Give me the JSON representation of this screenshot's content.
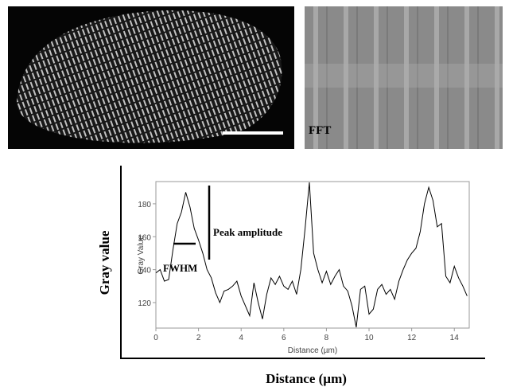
{
  "figure": {
    "fft_label": "FFT",
    "y_label": "Gray value",
    "x_label": "Distance (µm)"
  },
  "chart_data": {
    "type": "line",
    "x_label": "Distance (µm)",
    "y_label": "Gray Value",
    "annotations": [
      "Peak amplitude",
      "FWHM"
    ],
    "color": "#000000",
    "x": [
      0,
      0.2,
      0.4,
      0.6,
      0.8,
      1.0,
      1.2,
      1.4,
      1.6,
      1.8,
      2.0,
      2.2,
      2.4,
      2.6,
      2.8,
      3.0,
      3.2,
      3.4,
      3.6,
      3.8,
      4.0,
      4.2,
      4.4,
      4.6,
      4.8,
      5.0,
      5.2,
      5.4,
      5.6,
      5.8,
      6.0,
      6.2,
      6.4,
      6.6,
      6.8,
      7.0,
      7.2,
      7.4,
      7.6,
      7.8,
      8.0,
      8.2,
      8.4,
      8.6,
      8.8,
      9.0,
      9.2,
      9.4,
      9.6,
      9.8,
      10.0,
      10.2,
      10.4,
      10.6,
      10.8,
      11.0,
      11.2,
      11.4,
      11.6,
      11.8,
      12.0,
      12.2,
      12.4,
      12.6,
      12.8,
      13.0,
      13.2,
      13.4,
      13.6,
      13.8,
      14.0,
      14.2,
      14.4,
      14.6
    ],
    "values": [
      138,
      140,
      133,
      134,
      152,
      168,
      175,
      187,
      178,
      165,
      158,
      150,
      140,
      135,
      126,
      120,
      127,
      128,
      130,
      133,
      124,
      118,
      112,
      132,
      120,
      110,
      125,
      135,
      131,
      136,
      130,
      128,
      133,
      125,
      140,
      165,
      193,
      150,
      140,
      132,
      139,
      131,
      136,
      140,
      130,
      127,
      118,
      105,
      128,
      130,
      113,
      116,
      128,
      131,
      125,
      128,
      122,
      133,
      140,
      146,
      150,
      153,
      163,
      180,
      190,
      182,
      166,
      168,
      136,
      132,
      142,
      135,
      130,
      124
    ],
    "xlim": [
      0,
      14.7
    ],
    "ylim": [
      104.5,
      193.5
    ],
    "xticks": [
      0,
      2,
      4,
      6,
      8,
      10,
      12,
      14
    ],
    "yticks": [
      120,
      140,
      160,
      180
    ]
  }
}
